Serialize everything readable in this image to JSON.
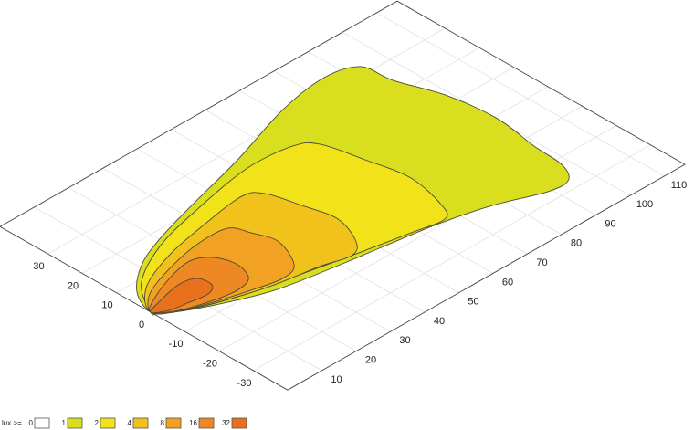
{
  "chart_data": {
    "type": "contour",
    "xlim": [
      0,
      116
    ],
    "ylim": [
      -40,
      44
    ],
    "xticks": [
      10,
      20,
      30,
      40,
      50,
      60,
      70,
      80,
      90,
      100,
      110
    ],
    "yticks": [
      -30,
      -20,
      -10,
      0,
      10,
      20,
      30
    ],
    "grid": true,
    "legend_title": "lux >=",
    "levels": [
      {
        "value": 0,
        "color": "#ffffff"
      },
      {
        "value": 1,
        "color": "#d9df1e",
        "x": [
          0,
          3.2,
          10.9,
          20.1,
          33.5,
          51.9,
          71.5,
          85.7,
          93.8,
          95,
          99,
          100.4,
          98.7,
          98,
          95,
          89,
          77.5,
          64.8,
          50.9,
          37,
          23.6,
          12.1,
          3.3
        ],
        "y": [
          0,
          7.2,
          13.5,
          17.5,
          21.5,
          26.5,
          32.8,
          35,
          32.5,
          24.3,
          12.3,
          -0.9,
          -13.3,
          -22,
          -27,
          -27,
          -22.5,
          -19.3,
          -17.1,
          -15,
          -12.4,
          -7.9,
          -3.3
        ]
      },
      {
        "value": 2,
        "color": "#f2e21a",
        "x": [
          0,
          6.2,
          18.3,
          33,
          50.9,
          63.4,
          67.9,
          70.5,
          72.5,
          70,
          66.9,
          58.4,
          45,
          31.9,
          18.7,
          7.8,
          1.1
        ],
        "y": [
          0,
          8.9,
          15.6,
          19.6,
          22.9,
          22,
          18.5,
          7.9,
          -3.5,
          -15,
          -19,
          -17.6,
          -15,
          -12.2,
          -9.3,
          -5.5,
          -1.6
        ]
      },
      {
        "value": 4,
        "color": "#f2c21c",
        "x": [
          0,
          5.7,
          17.2,
          30.8,
          43.2,
          47.2,
          49.5,
          51.3,
          48.1,
          43.9,
          36.4,
          25,
          14.6,
          5.1
        ],
        "y": [
          0,
          7,
          11.9,
          14.8,
          16.5,
          13.8,
          5.5,
          -3.4,
          -11.9,
          -14.8,
          -12.9,
          -11,
          -8,
          -4.2
        ]
      },
      {
        "value": 8,
        "color": "#f1a222",
        "x": [
          0,
          5.2,
          15.5,
          25.4,
          32.9,
          35.1,
          36.8,
          33.1,
          28,
          20.3,
          11,
          3.3
        ],
        "y": [
          0,
          5.2,
          8.9,
          10.8,
          10.3,
          5.7,
          -0.6,
          -8.8,
          -10.6,
          -9,
          -6.3,
          -3.3
        ]
      },
      {
        "value": 16,
        "color": "#ee8822",
        "x": [
          0,
          4.7,
          13.2,
          19.4,
          23.4,
          24.9,
          23,
          18.3,
          11.5,
          4.5
        ],
        "y": [
          0,
          3.3,
          6.5,
          7.4,
          4.7,
          -0.5,
          -5.6,
          -7,
          -5.9,
          -3.6
        ]
      },
      {
        "value": 32,
        "color": "#e9711e",
        "x": [
          0,
          4.2,
          11,
          15.4,
          16,
          13.1,
          7.7,
          3.1
        ],
        "y": [
          0,
          1.5,
          3,
          2,
          -1.9,
          -3.7,
          -3,
          -2.2
        ]
      }
    ]
  }
}
